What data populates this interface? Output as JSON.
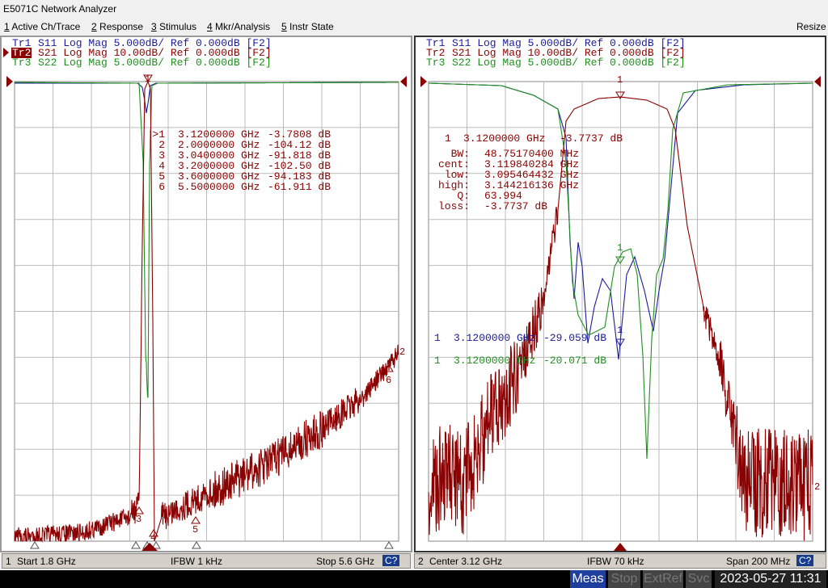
{
  "window_title": "E5071C Network Analyzer",
  "menu": [
    {
      "key": "1",
      "label": "Active Ch/Trace"
    },
    {
      "key": "2",
      "label": "Response"
    },
    {
      "key": "3",
      "label": "Stimulus"
    },
    {
      "key": "4",
      "label": "Mkr/Analysis"
    },
    {
      "key": "5",
      "label": "Instr State"
    }
  ],
  "resize": "Resize",
  "channels": [
    {
      "traces": [
        {
          "id": "Tr1",
          "label": "S11 Log Mag 5.000dB/ Ref 0.000dB [F2]"
        },
        {
          "id": "Tr2",
          "label": "S21 Log Mag 10.00dB/ Ref 0.000dB [F2]"
        },
        {
          "id": "Tr3",
          "label": "S22 Log Mag 5.000dB/ Ref 0.000dB [F2]"
        }
      ],
      "marker_table": [
        [
          ">1",
          "3.1200000 GHz",
          "-3.7808 dB"
        ],
        [
          "2",
          "2.0000000 GHz",
          "-104.12 dB"
        ],
        [
          "3",
          "3.0400000 GHz",
          "-91.818 dB"
        ],
        [
          "4",
          "3.2000000 GHz",
          "-102.50 dB"
        ],
        [
          "5",
          "3.6000000 GHz",
          "-94.183 dB"
        ],
        [
          "6",
          "5.5000000 GHz",
          "-61.911 dB"
        ]
      ],
      "plot_labels": [
        "1",
        "2",
        "3",
        "4",
        "5",
        "6"
      ],
      "footer": {
        "channel": "1",
        "start": "Start 1.8 GHz",
        "ifbw": "IFBW 1 kHz",
        "stop": "Stop 5.6 GHz",
        "status": "C?"
      }
    },
    {
      "traces": [
        {
          "id": "Tr1",
          "label": "S11 Log Mag 5.000dB/ Ref 0.000dB [F2]"
        },
        {
          "id": "Tr2",
          "label": "S21 Log Mag 10.00dB/ Ref 0.000dB [F2]"
        },
        {
          "id": "Tr3",
          "label": "S22 Log Mag 5.000dB/ Ref 0.000dB [F2]"
        }
      ],
      "marker_readouts": [
        [
          "1",
          "3.1200000 GHz",
          "-3.7737 dB"
        ],
        [
          "1",
          "3.1200000 GHz",
          "-29.059 dB"
        ],
        [
          "1",
          "3.1200000 GHz",
          "-20.071 dB"
        ]
      ],
      "bw_stats": [
        [
          "BW:",
          "48.75170400 MHz"
        ],
        [
          "cent:",
          "3.119840284 GHz"
        ],
        [
          "low:",
          "3.095464432 GHz"
        ],
        [
          "high:",
          "3.144216136 GHz"
        ],
        [
          "Q:",
          "63.994"
        ],
        [
          "loss:",
          "-3.7737 dB"
        ]
      ],
      "plot_labels": [
        "1",
        "1",
        "1",
        "2"
      ],
      "footer": {
        "channel": "2",
        "start": "Center 3.12 GHz",
        "ifbw": "IFBW 70 kHz",
        "stop": "Span 200 MHz",
        "status": "C?"
      }
    }
  ],
  "status_bar": [
    "Meas",
    "Stop",
    "ExtRef",
    "Svc"
  ],
  "datetime": "2023-05-27 11:31"
}
